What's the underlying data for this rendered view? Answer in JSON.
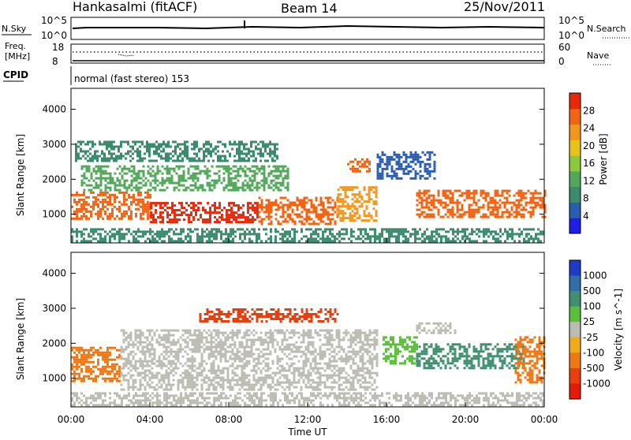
{
  "header": {
    "title": "Hankasalmi (fitACF)",
    "beam": "Beam 14",
    "date": "25/Nov/2011"
  },
  "status_panels": {
    "nsky_label": "N.Sky",
    "nsearch_label": "N.Search",
    "freq_label_line1": "Freq.",
    "freq_label_line2": "[MHz]",
    "nave_label": "Nave",
    "cpid_label": "CPID",
    "cpid_text": "normal (fast stereo) 153",
    "noise_ticks_left": [
      "10^5",
      "10^0"
    ],
    "noise_ticks_right": [
      "10^5",
      "10^0"
    ],
    "freq_ticks": [
      "18",
      "8"
    ],
    "nave_ticks": [
      "60",
      "0"
    ]
  },
  "chart_data": [
    {
      "type": "heatmap",
      "name": "power",
      "ylabel": "Slant Range [km]",
      "y_ticks": [
        "4000",
        "3000",
        "2000",
        "1000"
      ],
      "ylim": [
        180,
        4600
      ],
      "x_range_hours": [
        0,
        24
      ],
      "colorbar": {
        "label": "Power [dB]",
        "ticks": [
          "28",
          "24",
          "20",
          "16",
          "12",
          "8",
          "4"
        ],
        "range": [
          0,
          32
        ],
        "colors": [
          "#1e1ee6",
          "#2a5db0",
          "#3b8b6e",
          "#52a85a",
          "#8cc83c",
          "#e8c21a",
          "#f2961e",
          "#f06414",
          "#e8280a"
        ]
      },
      "bands": [
        {
          "x0": 0.0,
          "x1": 4.0,
          "y0": 850,
          "y1": 1650,
          "level": 28
        },
        {
          "x0": 4.0,
          "x1": 9.5,
          "y0": 800,
          "y1": 1350,
          "level": 29
        },
        {
          "x0": 9.5,
          "x1": 13.5,
          "y0": 700,
          "y1": 1500,
          "level": 27
        },
        {
          "x0": 13.5,
          "x1": 15.5,
          "y0": 800,
          "y1": 1800,
          "level": 24
        },
        {
          "x0": 17.5,
          "x1": 24.0,
          "y0": 950,
          "y1": 1700,
          "level": 25
        },
        {
          "x0": 0.5,
          "x1": 11.0,
          "y0": 1700,
          "y1": 2400,
          "level": 12
        },
        {
          "x0": 14.0,
          "x1": 15.2,
          "y0": 2200,
          "y1": 2600,
          "level": 27
        },
        {
          "x0": 15.5,
          "x1": 18.5,
          "y0": 2000,
          "y1": 2800,
          "level": 7
        },
        {
          "x0": 0.0,
          "x1": 24.0,
          "y0": 200,
          "y1": 600,
          "level": 10
        },
        {
          "x0": 0.2,
          "x1": 10.5,
          "y0": 2500,
          "y1": 3100,
          "level": 9
        }
      ]
    },
    {
      "type": "heatmap",
      "name": "velocity",
      "ylabel": "Slant Range [km]",
      "y_ticks": [
        "4000",
        "3000",
        "2000",
        "1000"
      ],
      "ylim": [
        180,
        4600
      ],
      "x_ticks": [
        "00:00",
        "04:00",
        "08:00",
        "12:00",
        "16:00",
        "20:00",
        "00:00"
      ],
      "xlabel": "Time UT",
      "x_range_hours": [
        0,
        24
      ],
      "colorbar": {
        "label": "Velocity [m s^-1]",
        "ticks": [
          "1000",
          "500",
          "100",
          "25",
          "-25",
          "-100",
          "-500",
          "-1000"
        ],
        "colors": [
          "#1e3cc8",
          "#2f6ea6",
          "#3f8f70",
          "#5cbf3c",
          "#bcbcb4",
          "#f0aa1a",
          "#f07814",
          "#e64010",
          "#e41a0a"
        ]
      },
      "bands": [
        {
          "x0": 0.0,
          "x1": 2.5,
          "y0": 900,
          "y1": 1900,
          "level": "-100"
        },
        {
          "x0": 2.5,
          "x1": 15.5,
          "y0": 700,
          "y1": 2400,
          "level": "25"
        },
        {
          "x0": 6.5,
          "x1": 13.5,
          "y0": 2600,
          "y1": 3000,
          "level": "-500"
        },
        {
          "x0": 15.8,
          "x1": 17.5,
          "y0": 1400,
          "y1": 2200,
          "level": "100"
        },
        {
          "x0": 17.5,
          "x1": 23.0,
          "y0": 1300,
          "y1": 2000,
          "level": "500"
        },
        {
          "x0": 17.5,
          "x1": 19.5,
          "y0": 2300,
          "y1": 2600,
          "level": "25"
        },
        {
          "x0": 0.0,
          "x1": 24.0,
          "y0": 200,
          "y1": 600,
          "level": "25"
        },
        {
          "x0": 22.5,
          "x1": 24.0,
          "y0": 900,
          "y1": 2200,
          "level": "-100"
        }
      ]
    }
  ]
}
